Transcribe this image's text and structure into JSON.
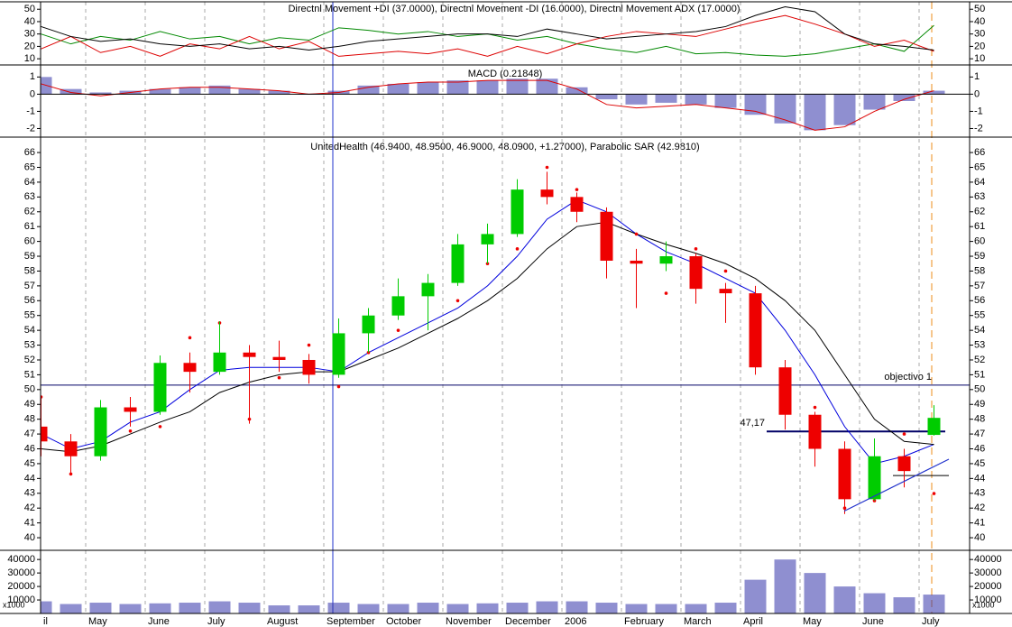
{
  "chart_data": [
    {
      "type": "line",
      "title": "Directnl Movement +DI (37.0000), Directnl Movement -DI (16.0000), Directnl Movement ADX (17.0000)",
      "ylim": [
        5,
        56
      ],
      "yticks": [
        10,
        20,
        30,
        40,
        50
      ],
      "series": [
        {
          "color": "#008800",
          "values": [
            30,
            22,
            28,
            25,
            32,
            26,
            28,
            22,
            27,
            25,
            35,
            33,
            30,
            32,
            28,
            30,
            25,
            28,
            22,
            18,
            15,
            20,
            14,
            15,
            13,
            12,
            14,
            18,
            22,
            16,
            37,
            null
          ]
        },
        {
          "color": "#dd0000",
          "values": [
            18,
            28,
            15,
            20,
            12,
            22,
            18,
            28,
            18,
            24,
            12,
            14,
            16,
            14,
            18,
            12,
            20,
            14,
            22,
            28,
            32,
            30,
            28,
            34,
            40,
            45,
            38,
            30,
            20,
            25,
            16,
            null
          ]
        },
        {
          "color": "#000000",
          "values": [
            36,
            28,
            24,
            26,
            22,
            20,
            22,
            18,
            20,
            17,
            20,
            24,
            26,
            28,
            30,
            30,
            28,
            34,
            30,
            26,
            28,
            30,
            32,
            36,
            45,
            52,
            48,
            30,
            22,
            20,
            17,
            null
          ]
        }
      ]
    },
    {
      "type": "bar",
      "title": "MACD (0.21848)",
      "ylim": [
        -2.5,
        1.7
      ],
      "yticks": [
        -2,
        -1,
        0,
        1
      ],
      "series": [
        {
          "type": "bar",
          "color": "#3333aa",
          "values": [
            1.0,
            0.3,
            0.1,
            0.2,
            0.3,
            0.4,
            0.5,
            0.3,
            0.2,
            0.0,
            0.2,
            0.5,
            0.6,
            0.7,
            0.8,
            0.8,
            0.9,
            0.9,
            0.4,
            -0.3,
            -0.6,
            -0.5,
            -0.6,
            -0.8,
            -1.2,
            -1.7,
            -2.1,
            -1.8,
            -0.9,
            -0.4,
            0.2,
            null
          ]
        },
        {
          "type": "line",
          "color": "#dd0000",
          "values": [
            0.6,
            0.1,
            -0.1,
            0.1,
            0.3,
            0.4,
            0.4,
            0.3,
            0.2,
            0.0,
            0.1,
            0.4,
            0.6,
            0.7,
            0.7,
            0.8,
            0.8,
            0.8,
            0.3,
            -0.6,
            -0.8,
            -0.7,
            -0.6,
            -0.8,
            -1.0,
            -1.5,
            -2.1,
            -1.9,
            -1.0,
            -0.3,
            0.2,
            null
          ]
        }
      ]
    },
    {
      "type": "candlestick",
      "title": "UnitedHealth (46.9400, 48.9500, 46.9000, 48.0900, +1.27000), Parabolic SAR (42.9810)",
      "ylim": [
        39.15,
        67.04
      ],
      "yticks": [
        40,
        41,
        42,
        43,
        44,
        45,
        46,
        47,
        48,
        49,
        50,
        51,
        52,
        53,
        54,
        55,
        56,
        57,
        58,
        59,
        60,
        61,
        62,
        63,
        64,
        65,
        66
      ],
      "up_color": "#00cc00",
      "down_color": "#ee0000",
      "open": [
        47.5,
        46.5,
        45.5,
        48.8,
        48.5,
        51.8,
        51.2,
        52.5,
        52.2,
        52,
        51,
        53.8,
        55,
        56.3,
        57.2,
        59.8,
        60.5,
        63.5,
        63,
        62,
        58.7,
        58.5,
        59,
        56.8,
        56.5,
        51.5,
        48.3,
        46,
        42.6,
        45.5,
        46.94,
        null
      ],
      "high": [
        49.5,
        47,
        49.3,
        49.5,
        52.3,
        52.5,
        54.6,
        53,
        53.3,
        52.4,
        54.8,
        55.5,
        57.5,
        57.8,
        60.5,
        61.2,
        64.2,
        64.7,
        63.3,
        62.3,
        59.5,
        60,
        59.2,
        57.2,
        57,
        52,
        48.5,
        46.5,
        46.7,
        46,
        48.95,
        null
      ],
      "low": [
        45.5,
        44.3,
        45.2,
        47.5,
        48.3,
        49.8,
        51,
        47.7,
        51.2,
        50.4,
        50.8,
        52.5,
        54.7,
        54,
        57,
        58.5,
        60.3,
        62.5,
        61.3,
        57.5,
        55.5,
        58,
        55.8,
        54.5,
        51,
        47.3,
        44.8,
        41.6,
        42.5,
        43.4,
        46.9,
        null
      ],
      "close": [
        46.5,
        45.5,
        48.8,
        48.5,
        51.8,
        51.2,
        52.5,
        52.2,
        52,
        51,
        53.8,
        55,
        56.3,
        57.2,
        59.8,
        60.5,
        63.5,
        63,
        62,
        58.7,
        58.5,
        59,
        56.8,
        56.5,
        51.5,
        48.3,
        46,
        42.6,
        45.5,
        44.5,
        48.09,
        null
      ],
      "overlays": [
        {
          "type": "line",
          "color": "#0000dd",
          "values": [
            47,
            46,
            46.5,
            47.8,
            48.5,
            50,
            51.3,
            51.5,
            51.5,
            51.5,
            51.2,
            52.5,
            53.5,
            54.5,
            55.5,
            57,
            59,
            61.5,
            62.8,
            62,
            60.5,
            59.3,
            58.5,
            57.5,
            56.5,
            54,
            51,
            47.5,
            45,
            45.5,
            46.3,
            null
          ]
        },
        {
          "type": "line",
          "color": "#000000",
          "values": [
            46,
            45.8,
            46.2,
            47,
            47.8,
            48.5,
            49.8,
            50.5,
            51,
            51.2,
            51.2,
            52,
            52.8,
            53.8,
            54.8,
            56,
            57.5,
            59.5,
            61,
            61.3,
            60.5,
            59.8,
            59.2,
            58.5,
            57.5,
            56,
            54,
            51,
            48,
            46.5,
            46.3,
            null
          ]
        },
        {
          "type": "scatter",
          "color": "#ee0000",
          "values": [
            49.5,
            44.3,
            46.5,
            47.2,
            47.5,
            53.5,
            54.5,
            48,
            50.8,
            53,
            50.2,
            52.5,
            54,
            56.8,
            56,
            58.5,
            59.5,
            65,
            63.5,
            61,
            60.5,
            56.5,
            59.5,
            58,
            54.5,
            50.5,
            48.8,
            42,
            42.5,
            47,
            42.981,
            null
          ]
        }
      ],
      "hlines": [
        {
          "value": 50.3,
          "label": "objectivo 1",
          "color": "#000066"
        },
        {
          "value": 47.17,
          "label": "47,17",
          "color": "#000066"
        },
        {
          "value": 44.2,
          "color": "#000000"
        }
      ],
      "trendline": {
        "color": "#2233cc",
        "values": [
          41.8,
          45.3
        ]
      }
    },
    {
      "type": "bar",
      "unit_label": "x1000",
      "categories": [
        "il",
        null,
        "May",
        null,
        "June",
        null,
        "July",
        null,
        "August",
        null,
        "September",
        null,
        "October",
        null,
        "November",
        null,
        "December",
        null,
        "2006",
        null,
        "February",
        null,
        "March",
        null,
        "April",
        null,
        "May",
        null,
        "June",
        null,
        "July",
        null
      ],
      "values": [
        9000,
        7000,
        8000,
        7000,
        7500,
        8000,
        9000,
        8000,
        6000,
        6000,
        8000,
        7000,
        7000,
        8000,
        7000,
        7500,
        8000,
        9000,
        9000,
        8000,
        7000,
        7000,
        7000,
        8000,
        25000,
        40000,
        30000,
        20000,
        15000,
        12000,
        14000,
        null
      ],
      "color": "#3333aa",
      "ylim": [
        0,
        46800
      ],
      "yticks": [
        10000,
        20000,
        30000,
        40000
      ]
    }
  ]
}
